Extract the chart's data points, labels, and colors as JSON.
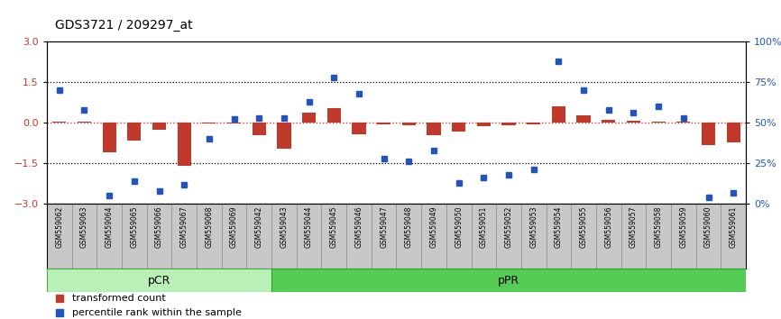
{
  "title": "GDS3721 / 209297_at",
  "samples": [
    "GSM559062",
    "GSM559063",
    "GSM559064",
    "GSM559065",
    "GSM559066",
    "GSM559067",
    "GSM559068",
    "GSM559069",
    "GSM559042",
    "GSM559043",
    "GSM559044",
    "GSM559045",
    "GSM559046",
    "GSM559047",
    "GSM559048",
    "GSM559049",
    "GSM559050",
    "GSM559051",
    "GSM559052",
    "GSM559053",
    "GSM559054",
    "GSM559055",
    "GSM559056",
    "GSM559057",
    "GSM559058",
    "GSM559059",
    "GSM559060",
    "GSM559061"
  ],
  "transformed_count": [
    0.05,
    0.03,
    -1.1,
    -0.65,
    -0.25,
    -1.58,
    -0.04,
    -0.03,
    -0.45,
    -0.95,
    0.38,
    0.52,
    -0.42,
    -0.07,
    -0.1,
    -0.48,
    -0.32,
    -0.12,
    -0.1,
    -0.07,
    0.6,
    0.28,
    0.1,
    0.06,
    0.04,
    0.04,
    -0.82,
    -0.72
  ],
  "percentile_rank": [
    70,
    58,
    5,
    14,
    8,
    12,
    40,
    52,
    53,
    53,
    63,
    78,
    68,
    28,
    26,
    33,
    13,
    16,
    18,
    21,
    88,
    70,
    58,
    56,
    60,
    53,
    4,
    7
  ],
  "pCR_count": 9,
  "pPR_count": 19,
  "ylim_left": [
    -3,
    3
  ],
  "ylim_right": [
    0,
    100
  ],
  "yticks_left": [
    -3,
    -1.5,
    0,
    1.5,
    3
  ],
  "yticks_right": [
    0,
    25,
    50,
    75,
    100
  ],
  "bar_color": "#c0392b",
  "dot_color": "#2255bb",
  "zero_line_color": "#dd3333",
  "pCR_color": "#b8f0b8",
  "pPR_color": "#55cc55",
  "bg_color": "#ffffff",
  "tick_color_left": "#c0392b",
  "tick_color_right": "#2255bb",
  "box_bg": "#c8c8c8",
  "label_font_size": 5.5,
  "title_font_size": 10,
  "legend_font_size": 8
}
